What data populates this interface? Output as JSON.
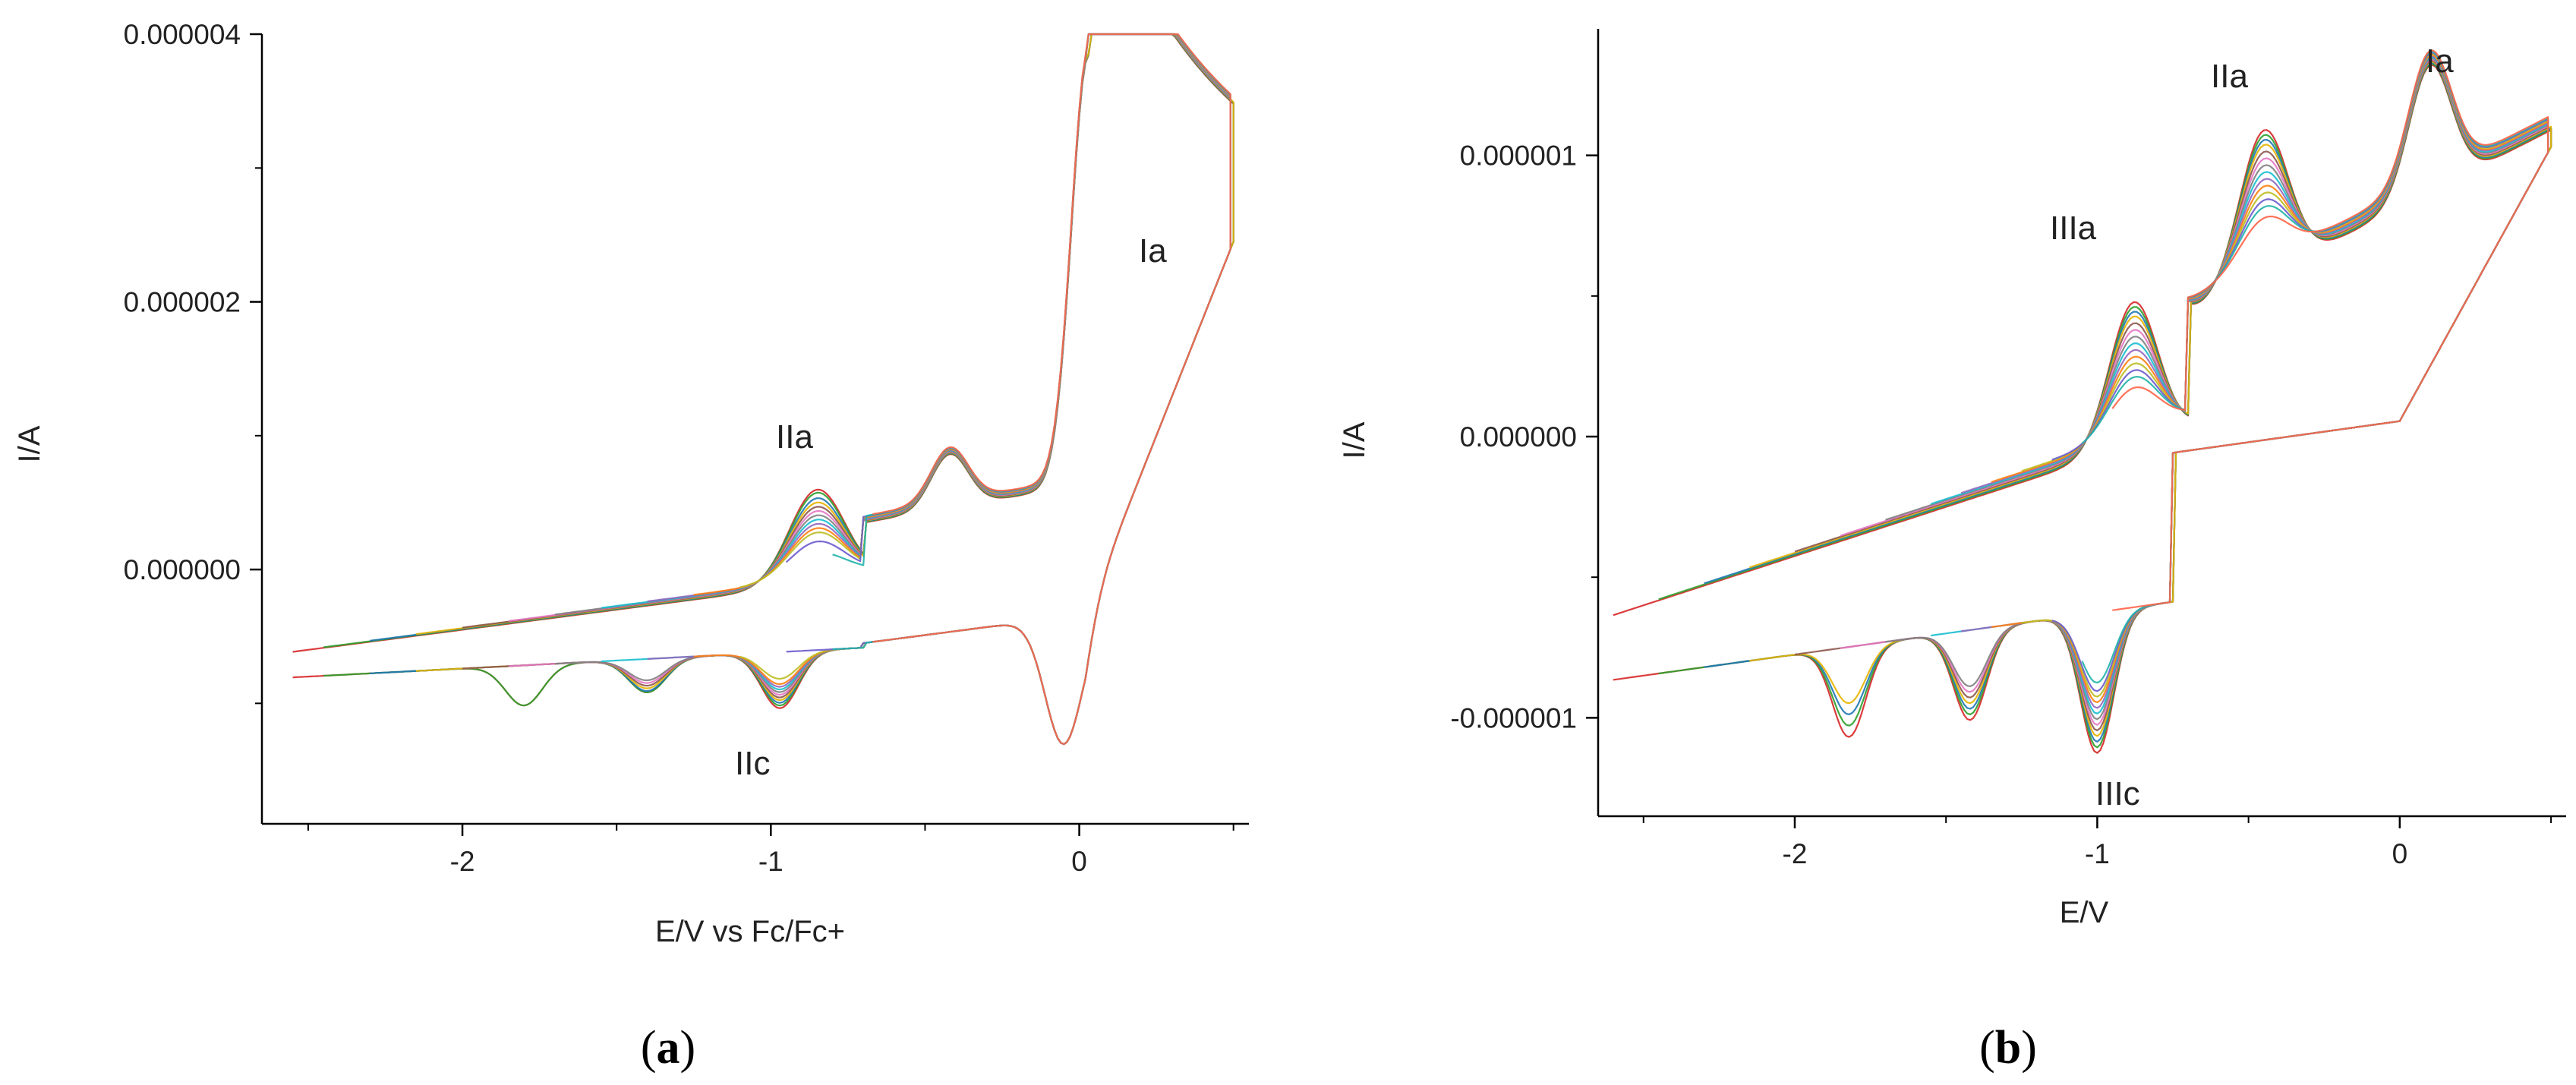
{
  "palette": [
    "#d62728",
    "#2ca02c",
    "#1f77b4",
    "#e6b400",
    "#8c564b",
    "#e377c2",
    "#7f7f7f",
    "#17becf",
    "#9467bd",
    "#ff7f0e",
    "#bcbd22",
    "#6a5acd",
    "#20b2aa",
    "#ff6347"
  ],
  "chart_data": [
    {
      "type": "line",
      "title": "",
      "caption_open": "(",
      "caption_letter": "a",
      "caption_close": ")",
      "xlabel": "E/V vs Fc/Fc+",
      "ylabel": "I/A",
      "xlim": [
        -2.65,
        0.55
      ],
      "ylim": [
        -1.9e-06,
        4e-06
      ],
      "x_ticks": [
        {
          "value": -2,
          "label": "-2"
        },
        {
          "value": -1,
          "label": "-1"
        },
        {
          "value": 0,
          "label": "0"
        }
      ],
      "y_ticks": [
        {
          "value": 0,
          "label": "0.000000"
        },
        {
          "value": 2e-06,
          "label": "0.000002"
        },
        {
          "value": 4e-06,
          "label": "0.000004"
        }
      ],
      "annotations": [
        {
          "label": "Ia",
          "x": 0.25,
          "y": 2.4e-06
        },
        {
          "label": "IIa",
          "x": -0.95,
          "y": 9.5e-07
        },
        {
          "label": "IIc",
          "x": -1.0,
          "y": -1.5e-06
        }
      ],
      "series_count": 14,
      "series_note_hidden": true,
      "scans": [
        {
          "start": -2.55,
          "valley_peaks": [
            {
              "x": -1.8,
              "y": -1.1e-06
            },
            {
              "x": -1.4,
              "y": -1.05e-06
            },
            {
              "x": -0.97,
              "y": -1.22e-06
            }
          ],
          "forward_peak": 7.8e-07
        },
        {
          "start": -2.45,
          "valley_peaks": [
            {
              "x": -1.8,
              "y": -1.1e-06
            },
            {
              "x": -1.4,
              "y": -1.05e-06
            },
            {
              "x": -0.97,
              "y": -1.2e-06
            }
          ],
          "forward_peak": 7.5e-07
        },
        {
          "start": -2.3,
          "valley_peaks": [
            {
              "x": -1.4,
              "y": -1.04e-06
            },
            {
              "x": -0.97,
              "y": -1.18e-06
            }
          ],
          "forward_peak": 7e-07
        },
        {
          "start": -2.15,
          "valley_peaks": [
            {
              "x": -1.4,
              "y": -1.02e-06
            },
            {
              "x": -0.97,
              "y": -1.16e-06
            }
          ],
          "forward_peak": 6.6e-07
        },
        {
          "start": -2.0,
          "valley_peaks": [
            {
              "x": -1.4,
              "y": -1e-06
            },
            {
              "x": -0.97,
              "y": -1.14e-06
            }
          ],
          "forward_peak": 6.2e-07
        },
        {
          "start": -1.85,
          "valley_peaks": [
            {
              "x": -1.4,
              "y": -9.8e-07
            },
            {
              "x": -0.97,
              "y": -1.12e-06
            }
          ],
          "forward_peak": 5.8e-07
        },
        {
          "start": -1.7,
          "valley_peaks": [
            {
              "x": -1.4,
              "y": -9.6e-07
            },
            {
              "x": -0.97,
              "y": -1.1e-06
            }
          ],
          "forward_peak": 5.4e-07
        },
        {
          "start": -1.55,
          "valley_peaks": [
            {
              "x": -0.97,
              "y": -1.08e-06
            }
          ],
          "forward_peak": 5e-07
        },
        {
          "start": -1.4,
          "valley_peaks": [
            {
              "x": -0.97,
              "y": -1.06e-06
            }
          ],
          "forward_peak": 4.6e-07
        },
        {
          "start": -1.25,
          "valley_peaks": [
            {
              "x": -0.97,
              "y": -1.04e-06
            }
          ],
          "forward_peak": 4.2e-07
        },
        {
          "start": -1.1,
          "valley_peaks": [
            {
              "x": -0.97,
              "y": -1e-06
            }
          ],
          "forward_peak": 3.8e-07
        },
        {
          "start": -0.95,
          "valley_peaks": [],
          "forward_peak": 3e-07
        },
        {
          "start": -0.8,
          "valley_peaks": [],
          "forward_peak": 2e-07
        },
        {
          "start": -0.67,
          "valley_peaks": [],
          "forward_peak": 1e-07
        }
      ]
    },
    {
      "type": "line",
      "title": "",
      "caption_open": "(",
      "caption_letter": "b",
      "caption_close": ")",
      "xlabel": "E/V",
      "ylabel": "I/A",
      "xlim": [
        -2.65,
        0.55
      ],
      "ylim": [
        -1.35e-06,
        1.45e-06
      ],
      "x_ticks": [
        {
          "value": -2,
          "label": "-2"
        },
        {
          "value": -1,
          "label": "-1"
        },
        {
          "value": 0,
          "label": "0"
        }
      ],
      "y_ticks": [
        {
          "value": -1e-06,
          "label": "-0.000001"
        },
        {
          "value": 0,
          "label": "0.000000"
        },
        {
          "value": 1e-06,
          "label": "0.000001"
        }
      ],
      "annotations": [
        {
          "label": "Ia",
          "x": 0.15,
          "y": 1.28e-06
        },
        {
          "label": "IIa",
          "x": -0.5,
          "y": 1.28e-06
        },
        {
          "label": "IIIa",
          "x": -0.95,
          "y": 8.5e-07
        },
        {
          "label": "IIIc",
          "x": -0.88,
          "y": -1.25e-06
        }
      ],
      "series_count": 14,
      "series_note_hidden": true,
      "scans": [
        {
          "start": -2.6,
          "valley_peaks": [
            {
              "x": -1.82,
              "y": -1.12e-06
            },
            {
              "x": -1.42,
              "y": -1.12e-06
            },
            {
              "x": -1.0,
              "y": -1.3e-06
            }
          ],
          "forward_peak": 7.3e-07
        },
        {
          "start": -2.45,
          "valley_peaks": [
            {
              "x": -1.82,
              "y": -1.08e-06
            },
            {
              "x": -1.42,
              "y": -1.1e-06
            },
            {
              "x": -1.0,
              "y": -1.28e-06
            }
          ],
          "forward_peak": 7e-07
        },
        {
          "start": -2.3,
          "valley_peaks": [
            {
              "x": -1.82,
              "y": -1.04e-06
            },
            {
              "x": -1.42,
              "y": -1.08e-06
            },
            {
              "x": -1.0,
              "y": -1.26e-06
            }
          ],
          "forward_peak": 6.7e-07
        },
        {
          "start": -2.15,
          "valley_peaks": [
            {
              "x": -1.82,
              "y": -1e-06
            },
            {
              "x": -1.42,
              "y": -1.06e-06
            },
            {
              "x": -1.0,
              "y": -1.24e-06
            }
          ],
          "forward_peak": 6.4e-07
        },
        {
          "start": -2.0,
          "valley_peaks": [
            {
              "x": -1.42,
              "y": -1.04e-06
            },
            {
              "x": -1.0,
              "y": -1.22e-06
            }
          ],
          "forward_peak": 6e-07
        },
        {
          "start": -1.85,
          "valley_peaks": [
            {
              "x": -1.42,
              "y": -1.02e-06
            },
            {
              "x": -1.0,
              "y": -1.2e-06
            }
          ],
          "forward_peak": 5.6e-07
        },
        {
          "start": -1.7,
          "valley_peaks": [
            {
              "x": -1.42,
              "y": -1e-06
            },
            {
              "x": -1.0,
              "y": -1.18e-06
            }
          ],
          "forward_peak": 5.2e-07
        },
        {
          "start": -1.55,
          "valley_peaks": [
            {
              "x": -1.0,
              "y": -1.16e-06
            }
          ],
          "forward_peak": 4.8e-07
        },
        {
          "start": -1.45,
          "valley_peaks": [
            {
              "x": -1.0,
              "y": -1.14e-06
            }
          ],
          "forward_peak": 4.4e-07
        },
        {
          "start": -1.35,
          "valley_peaks": [
            {
              "x": -1.0,
              "y": -1.12e-06
            }
          ],
          "forward_peak": 4e-07
        },
        {
          "start": -1.25,
          "valley_peaks": [
            {
              "x": -1.0,
              "y": -1.1e-06
            }
          ],
          "forward_peak": 3.6e-07
        },
        {
          "start": -1.15,
          "valley_peaks": [
            {
              "x": -1.0,
              "y": -1.08e-06
            }
          ],
          "forward_peak": 3.2e-07
        },
        {
          "start": -1.05,
          "valley_peaks": [
            {
              "x": -1.0,
              "y": -1.05e-06
            }
          ],
          "forward_peak": 2.8e-07
        },
        {
          "start": -0.95,
          "valley_peaks": [],
          "forward_peak": 2.2e-07
        }
      ]
    }
  ]
}
